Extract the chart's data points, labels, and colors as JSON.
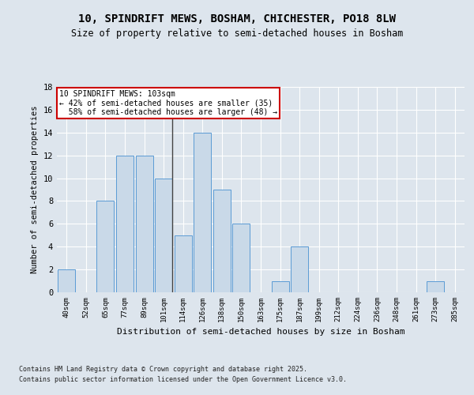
{
  "title_line1": "10, SPINDRIFT MEWS, BOSHAM, CHICHESTER, PO18 8LW",
  "title_line2": "Size of property relative to semi-detached houses in Bosham",
  "xlabel": "Distribution of semi-detached houses by size in Bosham",
  "ylabel": "Number of semi-detached properties",
  "footer_line1": "Contains HM Land Registry data © Crown copyright and database right 2025.",
  "footer_line2": "Contains public sector information licensed under the Open Government Licence v3.0.",
  "categories": [
    "40sqm",
    "52sqm",
    "65sqm",
    "77sqm",
    "89sqm",
    "101sqm",
    "114sqm",
    "126sqm",
    "138sqm",
    "150sqm",
    "163sqm",
    "175sqm",
    "187sqm",
    "199sqm",
    "212sqm",
    "224sqm",
    "236sqm",
    "248sqm",
    "261sqm",
    "273sqm",
    "285sqm"
  ],
  "values": [
    2,
    0,
    8,
    12,
    12,
    10,
    5,
    14,
    9,
    6,
    0,
    1,
    4,
    0,
    0,
    0,
    0,
    0,
    0,
    1,
    0
  ],
  "bar_color": "#c9d9e8",
  "bar_edge_color": "#5b9bd5",
  "property_line_index": 5,
  "property_size": "103sqm",
  "pct_smaller": 42,
  "count_smaller": 35,
  "pct_larger": 58,
  "count_larger": 48,
  "annotation_box_color": "#ffffff",
  "annotation_box_edge_color": "#cc0000",
  "ylim": [
    0,
    18
  ],
  "yticks": [
    0,
    2,
    4,
    6,
    8,
    10,
    12,
    14,
    16,
    18
  ],
  "background_color": "#dde5ed",
  "plot_bg_color": "#dde5ed",
  "grid_color": "#ffffff"
}
